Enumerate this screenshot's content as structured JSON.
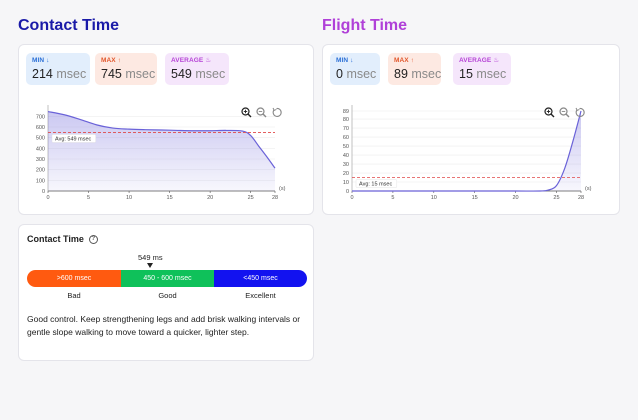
{
  "contact": {
    "title": "Contact Time",
    "stats": {
      "min_label": "MIN ↓",
      "min_value": "214",
      "min_unit": "msec",
      "max_label": "MAX ↑",
      "max_value": "745",
      "max_unit": "msec",
      "avg_label": "AVERAGE ♨",
      "avg_value": "549",
      "avg_unit": "msec"
    },
    "avg_annotation": "Avg: 549 msec",
    "x_unit": "(s)"
  },
  "flight": {
    "title": "Flight Time",
    "stats": {
      "min_label": "MIN ↓",
      "min_value": "0",
      "min_unit": "msec",
      "max_label": "MAX ↑",
      "max_value": "89",
      "max_unit": "msec",
      "avg_label": "AVERAGE ♨",
      "avg_value": "15",
      "avg_unit": "msec"
    },
    "avg_annotation": "Avg: 15 msec",
    "x_unit": "(s)"
  },
  "toolbar": {
    "icons": [
      "zoom-in-icon",
      "zoom-out-icon",
      "reset-icon"
    ]
  },
  "contact_bar": {
    "title": "Contact Time",
    "marker_value": "549 ms",
    "segments": [
      ">600 msec",
      "450 - 600 msec",
      "<450 msec"
    ],
    "segment_colors": [
      "#ff5a10",
      "#0fc15a",
      "#1212f0"
    ],
    "labels": [
      "Bad",
      "Good",
      "Excellent"
    ],
    "description": "Good control. Keep strengthening legs and add brisk walking intervals or gentle slope walking to move toward a quicker, lighter step."
  },
  "chart_data": [
    {
      "type": "area",
      "x": [
        0,
        2,
        4,
        6,
        8,
        10,
        12,
        14,
        16,
        18,
        20,
        22,
        24,
        25,
        26,
        27,
        28
      ],
      "series": [
        {
          "values": [
            745,
            715,
            670,
            620,
            590,
            580,
            575,
            572,
            568,
            565,
            565,
            568,
            562,
            520,
            420,
            320,
            214
          ]
        }
      ],
      "average": 549,
      "xticks": [
        0,
        5,
        10,
        15,
        20,
        25,
        28
      ],
      "yticks": [
        0,
        100,
        200,
        300,
        400,
        500,
        600,
        700
      ],
      "xlim": [
        0,
        28
      ],
      "ylim": [
        0,
        750
      ],
      "color": "#6a62d8"
    },
    {
      "type": "area",
      "x": [
        0,
        5,
        10,
        15,
        20,
        23,
        24,
        25,
        26,
        27,
        28
      ],
      "series": [
        {
          "values": [
            0,
            0,
            0,
            0,
            0,
            0,
            1,
            6,
            25,
            55,
            89
          ]
        }
      ],
      "average": 15,
      "xticks": [
        0,
        5,
        10,
        15,
        20,
        25,
        28
      ],
      "yticks": [
        0,
        10,
        20,
        30,
        40,
        50,
        60,
        70,
        80,
        89
      ],
      "xlim": [
        0,
        28
      ],
      "ylim": [
        0,
        89
      ],
      "color": "#6a62d8"
    }
  ]
}
